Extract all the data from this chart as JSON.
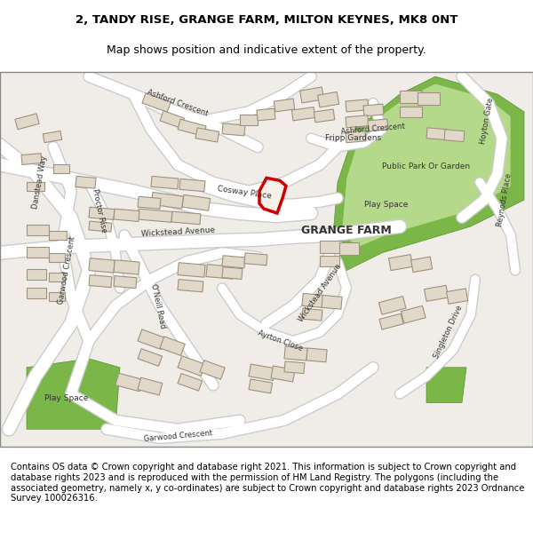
{
  "title_line1": "2, TANDY RISE, GRANGE FARM, MILTON KEYNES, MK8 0NT",
  "title_line2": "Map shows position and indicative extent of the property.",
  "copyright_text": "Contains OS data © Crown copyright and database right 2021. This information is subject to Crown copyright and database rights 2023 and is reproduced with the permission of HM Land Registry. The polygons (including the associated geometry, namely x, y co-ordinates) are subject to Crown copyright and database rights 2023 Ordnance Survey 100026316.",
  "map_bg": "#f0ede8",
  "road_color": "#ffffff",
  "road_outline": "#cccccc",
  "building_fc": "#e0d8c8",
  "building_ec": "#a09080",
  "green_dark": "#7ab648",
  "green_light": "#b5d98a",
  "plot_color": "#cc0000"
}
